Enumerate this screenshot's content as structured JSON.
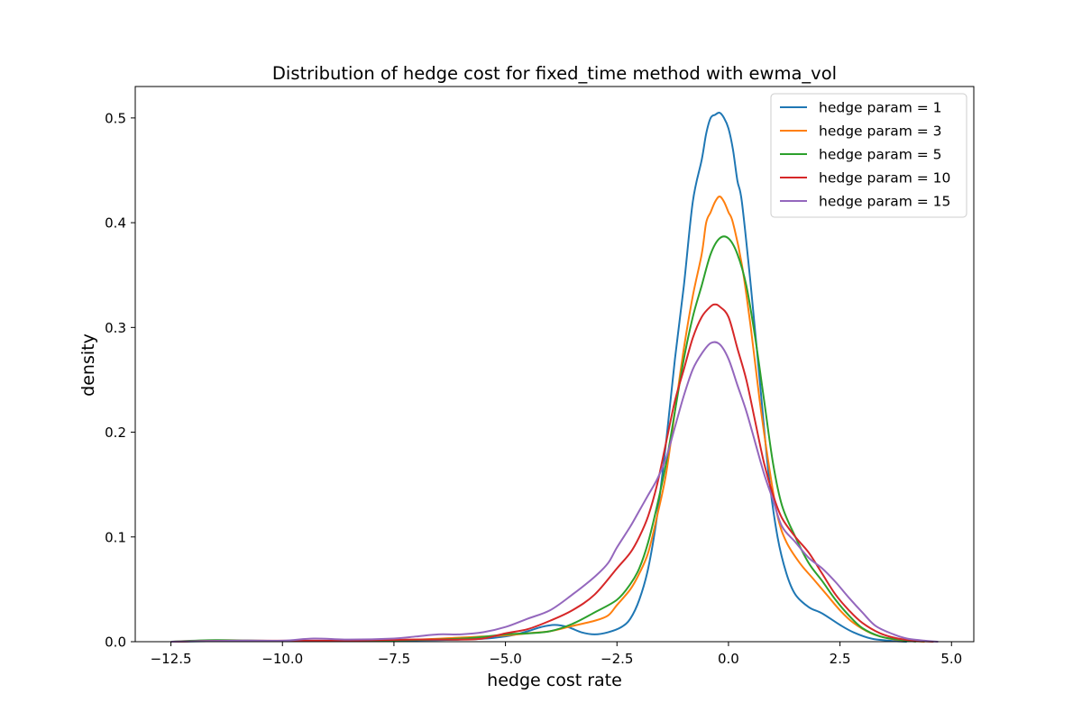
{
  "chart_data": {
    "type": "line",
    "title": "Distribution of hedge cost for fixed_time method with ewma_vol",
    "xlabel": "hedge cost rate",
    "ylabel": "density",
    "xlim": [
      -13.3,
      5.5
    ],
    "ylim": [
      0,
      0.53
    ],
    "xticks": [
      -12.5,
      -10.0,
      -7.5,
      -5.0,
      -2.5,
      0.0,
      2.5,
      5.0
    ],
    "xtick_labels": [
      "−12.5",
      "−10.0",
      "−7.5",
      "−5.0",
      "−2.5",
      "0.0",
      "2.5",
      "5.0"
    ],
    "yticks": [
      0.0,
      0.1,
      0.2,
      0.3,
      0.4,
      0.5
    ],
    "ytick_labels": [
      "0.0",
      "0.1",
      "0.2",
      "0.3",
      "0.4",
      "0.5"
    ],
    "grid": false,
    "legend_position": "upper right",
    "series": [
      {
        "name": "hedge param = 1",
        "color": "#1f77b4",
        "points": [
          [
            -12.5,
            0.0
          ],
          [
            -11.0,
            0.0007
          ],
          [
            -9.0,
            0.0007
          ],
          [
            -6.0,
            0.002
          ],
          [
            -5.0,
            0.005
          ],
          [
            -4.5,
            0.01
          ],
          [
            -4.2,
            0.014
          ],
          [
            -3.9,
            0.016
          ],
          [
            -3.6,
            0.014
          ],
          [
            -3.3,
            0.009
          ],
          [
            -3.0,
            0.007
          ],
          [
            -2.7,
            0.009
          ],
          [
            -2.4,
            0.014
          ],
          [
            -2.2,
            0.022
          ],
          [
            -2.0,
            0.04
          ],
          [
            -1.8,
            0.07
          ],
          [
            -1.6,
            0.12
          ],
          [
            -1.4,
            0.19
          ],
          [
            -1.2,
            0.27
          ],
          [
            -1.0,
            0.34
          ],
          [
            -0.8,
            0.42
          ],
          [
            -0.6,
            0.46
          ],
          [
            -0.5,
            0.485
          ],
          [
            -0.4,
            0.5
          ],
          [
            -0.3,
            0.503
          ],
          [
            -0.2,
            0.505
          ],
          [
            -0.1,
            0.5
          ],
          [
            0.0,
            0.49
          ],
          [
            0.1,
            0.47
          ],
          [
            0.2,
            0.44
          ],
          [
            0.3,
            0.42
          ],
          [
            0.5,
            0.34
          ],
          [
            0.7,
            0.25
          ],
          [
            0.9,
            0.16
          ],
          [
            1.1,
            0.1
          ],
          [
            1.3,
            0.065
          ],
          [
            1.5,
            0.045
          ],
          [
            1.8,
            0.033
          ],
          [
            2.1,
            0.027
          ],
          [
            2.5,
            0.016
          ],
          [
            2.8,
            0.009
          ],
          [
            3.2,
            0.003
          ],
          [
            3.6,
            0.001
          ],
          [
            4.0,
            0.0
          ]
        ]
      },
      {
        "name": "hedge param = 3",
        "color": "#ff7f0e",
        "points": [
          [
            -12.5,
            0.0
          ],
          [
            -11.0,
            0.001
          ],
          [
            -9.0,
            0.0007
          ],
          [
            -7.0,
            0.002
          ],
          [
            -6.0,
            0.004
          ],
          [
            -5.0,
            0.006
          ],
          [
            -4.5,
            0.008
          ],
          [
            -4.0,
            0.01
          ],
          [
            -3.5,
            0.015
          ],
          [
            -3.0,
            0.02
          ],
          [
            -2.7,
            0.025
          ],
          [
            -2.5,
            0.035
          ],
          [
            -2.2,
            0.05
          ],
          [
            -2.0,
            0.065
          ],
          [
            -1.8,
            0.085
          ],
          [
            -1.6,
            0.12
          ],
          [
            -1.4,
            0.16
          ],
          [
            -1.2,
            0.22
          ],
          [
            -1.0,
            0.28
          ],
          [
            -0.8,
            0.33
          ],
          [
            -0.6,
            0.37
          ],
          [
            -0.5,
            0.4
          ],
          [
            -0.4,
            0.41
          ],
          [
            -0.3,
            0.42
          ],
          [
            -0.2,
            0.425
          ],
          [
            -0.1,
            0.42
          ],
          [
            0.0,
            0.41
          ],
          [
            0.1,
            0.4
          ],
          [
            0.3,
            0.36
          ],
          [
            0.5,
            0.3
          ],
          [
            0.7,
            0.23
          ],
          [
            0.9,
            0.17
          ],
          [
            1.1,
            0.12
          ],
          [
            1.3,
            0.095
          ],
          [
            1.6,
            0.075
          ],
          [
            1.9,
            0.06
          ],
          [
            2.2,
            0.045
          ],
          [
            2.5,
            0.03
          ],
          [
            2.8,
            0.018
          ],
          [
            3.2,
            0.008
          ],
          [
            3.6,
            0.003
          ],
          [
            4.0,
            0.001
          ],
          [
            4.4,
            0.0
          ]
        ]
      },
      {
        "name": "hedge param = 5",
        "color": "#2ca02c",
        "points": [
          [
            -12.5,
            0.0
          ],
          [
            -11.5,
            0.0015
          ],
          [
            -10.0,
            0.0007
          ],
          [
            -8.0,
            0.001
          ],
          [
            -6.0,
            0.003
          ],
          [
            -5.0,
            0.007
          ],
          [
            -4.5,
            0.008
          ],
          [
            -4.0,
            0.01
          ],
          [
            -3.5,
            0.017
          ],
          [
            -3.0,
            0.028
          ],
          [
            -2.5,
            0.04
          ],
          [
            -2.2,
            0.055
          ],
          [
            -2.0,
            0.07
          ],
          [
            -1.8,
            0.095
          ],
          [
            -1.6,
            0.13
          ],
          [
            -1.4,
            0.17
          ],
          [
            -1.2,
            0.22
          ],
          [
            -1.0,
            0.27
          ],
          [
            -0.8,
            0.31
          ],
          [
            -0.6,
            0.34
          ],
          [
            -0.4,
            0.37
          ],
          [
            -0.2,
            0.385
          ],
          [
            0.0,
            0.385
          ],
          [
            0.2,
            0.37
          ],
          [
            0.4,
            0.34
          ],
          [
            0.6,
            0.29
          ],
          [
            0.8,
            0.23
          ],
          [
            1.0,
            0.17
          ],
          [
            1.2,
            0.13
          ],
          [
            1.5,
            0.1
          ],
          [
            1.8,
            0.075
          ],
          [
            2.1,
            0.058
          ],
          [
            2.4,
            0.04
          ],
          [
            2.7,
            0.025
          ],
          [
            3.0,
            0.013
          ],
          [
            3.4,
            0.005
          ],
          [
            3.8,
            0.002
          ],
          [
            4.2,
            0.0
          ]
        ]
      },
      {
        "name": "hedge param = 10",
        "color": "#d62728",
        "points": [
          [
            -12.5,
            0.0
          ],
          [
            -11.0,
            0.001
          ],
          [
            -9.0,
            0.001
          ],
          [
            -7.0,
            0.002
          ],
          [
            -6.0,
            0.002
          ],
          [
            -5.5,
            0.003
          ],
          [
            -5.0,
            0.008
          ],
          [
            -4.5,
            0.012
          ],
          [
            -4.0,
            0.02
          ],
          [
            -3.5,
            0.03
          ],
          [
            -3.0,
            0.045
          ],
          [
            -2.5,
            0.07
          ],
          [
            -2.2,
            0.085
          ],
          [
            -2.0,
            0.1
          ],
          [
            -1.8,
            0.12
          ],
          [
            -1.6,
            0.15
          ],
          [
            -1.4,
            0.19
          ],
          [
            -1.2,
            0.23
          ],
          [
            -1.0,
            0.26
          ],
          [
            -0.8,
            0.29
          ],
          [
            -0.6,
            0.31
          ],
          [
            -0.4,
            0.32
          ],
          [
            -0.3,
            0.322
          ],
          [
            -0.2,
            0.32
          ],
          [
            0.0,
            0.31
          ],
          [
            0.2,
            0.28
          ],
          [
            0.4,
            0.25
          ],
          [
            0.6,
            0.21
          ],
          [
            0.8,
            0.17
          ],
          [
            1.0,
            0.14
          ],
          [
            1.2,
            0.118
          ],
          [
            1.5,
            0.1
          ],
          [
            1.8,
            0.085
          ],
          [
            2.1,
            0.065
          ],
          [
            2.4,
            0.045
          ],
          [
            2.7,
            0.03
          ],
          [
            3.0,
            0.018
          ],
          [
            3.4,
            0.008
          ],
          [
            3.8,
            0.003
          ],
          [
            4.2,
            0.001
          ],
          [
            4.6,
            0.0
          ]
        ]
      },
      {
        "name": "hedge param = 15",
        "color": "#9467bd",
        "points": [
          [
            -12.5,
            0.0
          ],
          [
            -11.0,
            0.001
          ],
          [
            -10.0,
            0.001
          ],
          [
            -9.3,
            0.003
          ],
          [
            -8.5,
            0.002
          ],
          [
            -7.5,
            0.003
          ],
          [
            -7.0,
            0.005
          ],
          [
            -6.5,
            0.007
          ],
          [
            -6.0,
            0.007
          ],
          [
            -5.5,
            0.009
          ],
          [
            -5.0,
            0.014
          ],
          [
            -4.5,
            0.022
          ],
          [
            -4.0,
            0.03
          ],
          [
            -3.5,
            0.045
          ],
          [
            -3.0,
            0.062
          ],
          [
            -2.7,
            0.075
          ],
          [
            -2.5,
            0.09
          ],
          [
            -2.2,
            0.11
          ],
          [
            -2.0,
            0.125
          ],
          [
            -1.8,
            0.14
          ],
          [
            -1.6,
            0.155
          ],
          [
            -1.4,
            0.175
          ],
          [
            -1.2,
            0.205
          ],
          [
            -1.0,
            0.235
          ],
          [
            -0.8,
            0.26
          ],
          [
            -0.6,
            0.275
          ],
          [
            -0.4,
            0.285
          ],
          [
            -0.2,
            0.284
          ],
          [
            0.0,
            0.27
          ],
          [
            0.2,
            0.245
          ],
          [
            0.4,
            0.22
          ],
          [
            0.6,
            0.19
          ],
          [
            0.8,
            0.16
          ],
          [
            1.0,
            0.135
          ],
          [
            1.2,
            0.11
          ],
          [
            1.5,
            0.095
          ],
          [
            1.8,
            0.08
          ],
          [
            2.1,
            0.07
          ],
          [
            2.4,
            0.057
          ],
          [
            2.7,
            0.042
          ],
          [
            3.0,
            0.028
          ],
          [
            3.3,
            0.015
          ],
          [
            3.7,
            0.007
          ],
          [
            4.0,
            0.003
          ],
          [
            4.4,
            0.001
          ],
          [
            4.7,
            0.0
          ]
        ]
      }
    ]
  }
}
